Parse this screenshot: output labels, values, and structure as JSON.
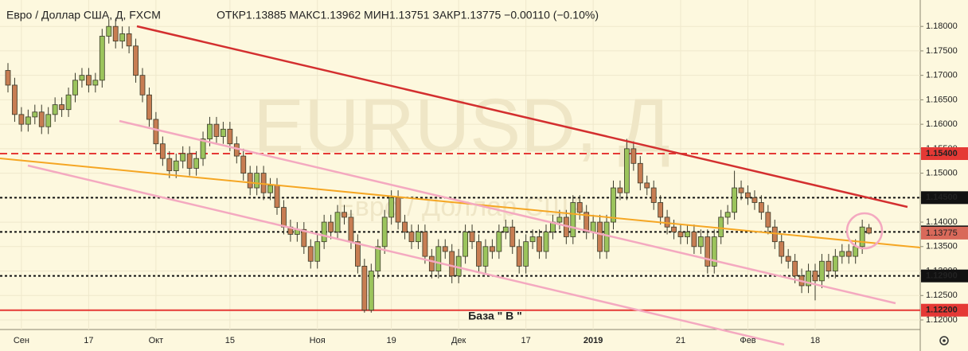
{
  "chart_data": {
    "type": "candlestick",
    "title": "Евро / Доллар США, Д, FXCM",
    "subtitle": "ОТКР1.13885 МАКС1.13962 МИН1.13751 ЗАКР1.13775 −0.00110 (−0.10%)",
    "watermark": "EURUSD, Д",
    "watermark_subtitle": "Евро / Доллар США",
    "annotation": "База  \" В \"",
    "up_color": "#9bc45c",
    "down_color": "#c77d52",
    "grid": true,
    "categories": [
      null,
      null,
      "Сен",
      null,
      null,
      null,
      null,
      null,
      null,
      null,
      null,
      null,
      "17",
      null,
      null,
      null,
      null,
      null,
      null,
      null,
      null,
      null,
      "Окт",
      null,
      null,
      null,
      null,
      null,
      null,
      null,
      null,
      null,
      null,
      "15",
      null,
      null,
      null,
      null,
      null,
      null,
      null,
      null,
      null,
      null,
      null,
      null,
      "Ноя",
      null,
      null,
      null,
      null,
      null,
      null,
      null,
      null,
      null,
      null,
      "19",
      null,
      null,
      null,
      null,
      null,
      null,
      null,
      null,
      null,
      "Дек",
      null,
      null,
      null,
      null,
      null,
      null,
      null,
      null,
      null,
      "17",
      null,
      null,
      null,
      null,
      null,
      null,
      null,
      null,
      null,
      "2019",
      null,
      null,
      null,
      null,
      null,
      null,
      null,
      null,
      null,
      null,
      null,
      null,
      "21",
      null,
      null,
      null,
      null,
      null,
      null,
      null,
      null,
      null,
      "Фев",
      null,
      null,
      null,
      null,
      null,
      null,
      null,
      null,
      null,
      "18",
      null,
      null,
      null,
      null,
      null,
      null,
      null,
      null
    ],
    "open": [
      1.171,
      1.168,
      1.162,
      1.16,
      1.1615,
      1.1625,
      1.1595,
      1.162,
      1.164,
      1.163,
      1.166,
      1.169,
      1.17,
      1.168,
      1.169,
      1.178,
      1.18,
      1.177,
      1.1785,
      1.176,
      1.17,
      1.166,
      1.161,
      1.156,
      1.153,
      1.1505,
      1.1525,
      1.154,
      1.151,
      1.153,
      1.157,
      1.16,
      1.1575,
      1.159,
      1.156,
      1.1535,
      1.15,
      1.147,
      1.15,
      1.146,
      1.1475,
      1.143,
      1.139,
      1.1375,
      1.1385,
      1.135,
      1.132,
      1.136,
      1.14,
      1.138,
      1.142,
      1.141,
      1.136,
      1.131,
      1.122,
      1.13,
      1.135,
      1.141,
      1.145,
      1.14,
      1.138,
      1.136,
      1.138,
      1.133,
      1.13,
      1.135,
      1.134,
      1.129,
      1.133,
      1.138,
      1.136,
      1.131,
      1.135,
      1.134,
      1.138,
      1.139,
      1.135,
      1.131,
      1.136,
      1.137,
      1.134,
      1.138,
      1.14,
      1.141,
      1.137,
      1.144,
      1.142,
      1.138,
      1.14,
      1.134,
      1.14,
      1.147,
      1.146,
      1.155,
      1.152,
      1.148,
      1.147,
      1.144,
      1.141,
      1.139,
      1.138,
      1.137,
      1.138,
      1.135,
      1.137,
      1.131,
      1.137,
      1.141,
      1.142,
      1.147,
      1.146,
      1.145,
      1.144,
      1.142,
      1.139,
      1.136,
      1.133,
      1.132,
      1.129,
      1.127,
      1.13,
      1.128,
      1.132,
      1.13,
      1.133,
      1.134,
      1.133,
      1.135,
      1.13885
    ],
    "high": [
      1.1725,
      1.1695,
      1.1635,
      1.163,
      1.164,
      1.164,
      1.1635,
      1.1655,
      1.1655,
      1.1675,
      1.1705,
      1.1715,
      1.1715,
      1.1705,
      1.1795,
      1.1815,
      1.1815,
      1.18,
      1.18,
      1.1775,
      1.1715,
      1.1675,
      1.1625,
      1.1575,
      1.1545,
      1.154,
      1.1555,
      1.1555,
      1.1545,
      1.1585,
      1.1615,
      1.1615,
      1.1605,
      1.1605,
      1.1575,
      1.155,
      1.1515,
      1.1515,
      1.1515,
      1.149,
      1.149,
      1.1445,
      1.1405,
      1.14,
      1.14,
      1.1365,
      1.1375,
      1.1415,
      1.1415,
      1.1435,
      1.1435,
      1.1425,
      1.1375,
      1.1325,
      1.1315,
      1.1365,
      1.1425,
      1.1465,
      1.1465,
      1.1415,
      1.1395,
      1.1395,
      1.1395,
      1.1345,
      1.1365,
      1.1365,
      1.1355,
      1.1345,
      1.1395,
      1.1395,
      1.1375,
      1.1365,
      1.1365,
      1.1395,
      1.1405,
      1.1405,
      1.1365,
      1.1375,
      1.1385,
      1.1385,
      1.1395,
      1.1415,
      1.1425,
      1.1425,
      1.1455,
      1.1455,
      1.1435,
      1.1415,
      1.1415,
      1.1415,
      1.1485,
      1.1485,
      1.157,
      1.1565,
      1.1535,
      1.1495,
      1.1485,
      1.1455,
      1.1425,
      1.1405,
      1.1395,
      1.1395,
      1.1395,
      1.1385,
      1.1385,
      1.1385,
      1.1425,
      1.1435,
      1.1505,
      1.1485,
      1.1475,
      1.1465,
      1.1455,
      1.1435,
      1.1405,
      1.1375,
      1.1345,
      1.1335,
      1.1305,
      1.1315,
      1.1315,
      1.1335,
      1.1335,
      1.1345,
      1.1355,
      1.1355,
      1.1365,
      1.1405,
      1.13962
    ],
    "low": [
      1.1665,
      1.1605,
      1.1585,
      1.1585,
      1.16,
      1.158,
      1.158,
      1.1605,
      1.1615,
      1.1615,
      1.1645,
      1.1675,
      1.1665,
      1.1665,
      1.1675,
      1.1765,
      1.1755,
      1.1755,
      1.1745,
      1.1685,
      1.1645,
      1.1595,
      1.1545,
      1.1515,
      1.149,
      1.149,
      1.151,
      1.1495,
      1.1495,
      1.1515,
      1.1555,
      1.156,
      1.156,
      1.1545,
      1.152,
      1.1485,
      1.1455,
      1.1455,
      1.1445,
      1.1445,
      1.1415,
      1.1375,
      1.136,
      1.136,
      1.1335,
      1.1305,
      1.1305,
      1.1345,
      1.1365,
      1.1365,
      1.1395,
      1.1345,
      1.1295,
      1.1215,
      1.1215,
      1.1285,
      1.1335,
      1.1395,
      1.1385,
      1.1365,
      1.1345,
      1.1345,
      1.1315,
      1.1285,
      1.1285,
      1.1325,
      1.1275,
      1.1275,
      1.1315,
      1.1345,
      1.1295,
      1.1295,
      1.1325,
      1.1325,
      1.1365,
      1.1335,
      1.1295,
      1.1295,
      1.1345,
      1.1325,
      1.1325,
      1.1365,
      1.1385,
      1.1355,
      1.1355,
      1.1405,
      1.1365,
      1.1365,
      1.1325,
      1.1325,
      1.1385,
      1.1445,
      1.1445,
      1.1505,
      1.1465,
      1.1455,
      1.1425,
      1.1395,
      1.1375,
      1.1365,
      1.1355,
      1.1355,
      1.1335,
      1.1335,
      1.1295,
      1.1295,
      1.1355,
      1.1395,
      1.1405,
      1.1445,
      1.1435,
      1.1425,
      1.1405,
      1.1375,
      1.1345,
      1.1315,
      1.1305,
      1.1275,
      1.1255,
      1.1255,
      1.124,
      1.1265,
      1.1285,
      1.1285,
      1.1315,
      1.1315,
      1.1315,
      1.1335,
      1.13751
    ],
    "close": [
      1.168,
      1.162,
      1.16,
      1.1615,
      1.1625,
      1.1595,
      1.162,
      1.164,
      1.163,
      1.166,
      1.169,
      1.17,
      1.168,
      1.169,
      1.178,
      1.18,
      1.177,
      1.1785,
      1.176,
      1.17,
      1.166,
      1.161,
      1.156,
      1.153,
      1.1505,
      1.1525,
      1.154,
      1.151,
      1.153,
      1.157,
      1.16,
      1.1575,
      1.159,
      1.156,
      1.1535,
      1.15,
      1.147,
      1.15,
      1.146,
      1.1475,
      1.143,
      1.139,
      1.1375,
      1.1385,
      1.135,
      1.132,
      1.136,
      1.14,
      1.138,
      1.142,
      1.141,
      1.136,
      1.131,
      1.122,
      1.13,
      1.135,
      1.141,
      1.145,
      1.14,
      1.138,
      1.136,
      1.138,
      1.133,
      1.13,
      1.135,
      1.134,
      1.129,
      1.133,
      1.138,
      1.136,
      1.131,
      1.135,
      1.134,
      1.138,
      1.139,
      1.135,
      1.131,
      1.136,
      1.137,
      1.134,
      1.138,
      1.14,
      1.141,
      1.137,
      1.144,
      1.142,
      1.138,
      1.14,
      1.134,
      1.14,
      1.147,
      1.146,
      1.155,
      1.152,
      1.148,
      1.147,
      1.144,
      1.141,
      1.139,
      1.138,
      1.137,
      1.138,
      1.135,
      1.137,
      1.131,
      1.137,
      1.141,
      1.142,
      1.147,
      1.146,
      1.145,
      1.144,
      1.142,
      1.139,
      1.136,
      1.133,
      1.132,
      1.129,
      1.127,
      1.13,
      1.128,
      1.132,
      1.13,
      1.133,
      1.134,
      1.133,
      1.135,
      1.139,
      1.13775
    ],
    "ylim": [
      1.1187,
      1.1854
    ],
    "yticks": [
      {
        "value": 1.12,
        "label": "1.12000"
      },
      {
        "value": 1.125,
        "label": "1.12500"
      },
      {
        "value": 1.13,
        "label": "1.13000"
      },
      {
        "value": 1.135,
        "label": "1.13500"
      },
      {
        "value": 1.14,
        "label": "1.14000"
      },
      {
        "value": 1.145,
        "label": "1.14500"
      },
      {
        "value": 1.15,
        "label": "1.15000"
      },
      {
        "value": 1.155,
        "label": "1.15500"
      },
      {
        "value": 1.16,
        "label": "1.16000"
      },
      {
        "value": 1.165,
        "label": "1.16500"
      },
      {
        "value": 1.17,
        "label": "1.17000"
      },
      {
        "value": 1.175,
        "label": "1.17500"
      },
      {
        "value": 1.18,
        "label": "1.18000"
      }
    ],
    "levels": [
      {
        "value": 1.154,
        "label": "1.15400",
        "style": "dashed",
        "color": "#e53935"
      },
      {
        "value": 1.145,
        "label": "1.14500",
        "style": "dotted",
        "color": "#111111"
      },
      {
        "value": 1.138,
        "label": "1.13800",
        "style": "dotted",
        "color": "#111111"
      },
      {
        "value": 1.129,
        "label": "1.12900",
        "style": "dotted",
        "color": "#111111"
      },
      {
        "value": 1.122,
        "label": "1.12200",
        "style": "solid",
        "color": "#e53935"
      }
    ],
    "last_price": {
      "value": 1.13775,
      "label": "1.13775",
      "color": "#d9695a"
    }
  }
}
